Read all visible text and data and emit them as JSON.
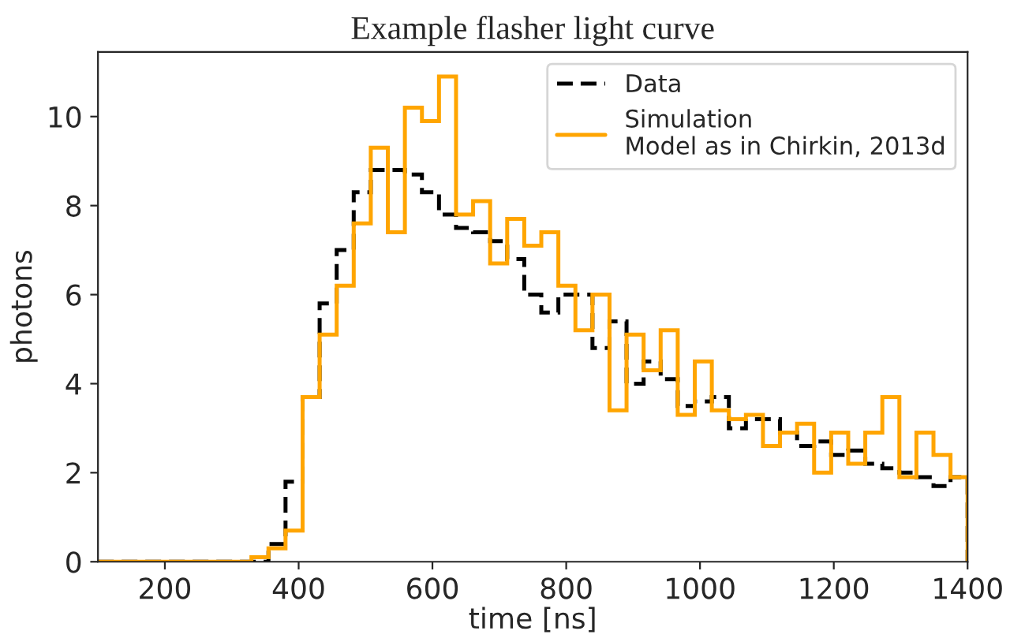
{
  "chart_data": {
    "type": "histogram",
    "title": "Example flasher light curve",
    "xlabel": "time [ns]",
    "ylabel": "photons",
    "bins": [
      100,
      125.49,
      150.98,
      176.47,
      201.96,
      227.45,
      252.94,
      278.43,
      303.92,
      329.41,
      354.9,
      380.39,
      405.88,
      431.37,
      456.86,
      482.35,
      507.84,
      533.33,
      558.82,
      584.31,
      609.8,
      635.29,
      660.78,
      686.27,
      711.76,
      737.25,
      762.75,
      788.24,
      813.73,
      839.22,
      864.71,
      890.2,
      915.69,
      941.18,
      966.67,
      992.16,
      1017.65,
      1043.14,
      1068.63,
      1094.12,
      1119.61,
      1145.1,
      1170.59,
      1196.08,
      1221.57,
      1247.06,
      1272.55,
      1298.04,
      1323.53,
      1349.02,
      1374.51,
      1400
    ],
    "series": [
      {
        "name": "Data",
        "color": "#000000",
        "line_style": "dashed",
        "values": [
          0,
          0,
          0,
          0,
          0,
          0,
          0,
          0,
          0,
          0,
          0.4,
          1.8,
          3.7,
          5.8,
          7.0,
          8.3,
          8.8,
          8.8,
          8.7,
          8.3,
          7.8,
          7.5,
          7.4,
          7.2,
          6.8,
          6.0,
          5.6,
          6.0,
          6.0,
          4.8,
          5.4,
          4.0,
          4.5,
          4.1,
          3.5,
          3.6,
          3.7,
          3.0,
          3.2,
          3.2,
          2.9,
          2.6,
          2.7,
          2.4,
          2.5,
          2.2,
          2.1,
          2.0,
          1.9,
          1.7,
          1.9
        ]
      },
      {
        "name": "Simulation\nModel as in Chirkin, 2013d",
        "color": "#ffa500",
        "line_style": "solid",
        "values": [
          0,
          0,
          0,
          0,
          0,
          0,
          0,
          0,
          0,
          0.1,
          0.3,
          0.7,
          3.7,
          5.1,
          6.2,
          7.6,
          9.3,
          7.4,
          10.2,
          9.9,
          10.9,
          7.8,
          8.1,
          6.7,
          7.7,
          7.1,
          7.4,
          6.2,
          5.2,
          6.0,
          3.4,
          5.1,
          4.3,
          5.2,
          3.3,
          4.5,
          3.4,
          3.2,
          3.3,
          2.6,
          2.9,
          3.1,
          2.0,
          2.9,
          2.2,
          2.9,
          3.7,
          1.9,
          2.9,
          2.4,
          1.9
        ]
      }
    ],
    "xlim": [
      100,
      1400
    ],
    "xticks": [
      200,
      400,
      600,
      800,
      1000,
      1200,
      1400
    ],
    "ylim": [
      0,
      11.45
    ],
    "yticks": [
      0,
      2,
      4,
      6,
      8,
      10
    ],
    "legend": "top right",
    "grid": false
  }
}
